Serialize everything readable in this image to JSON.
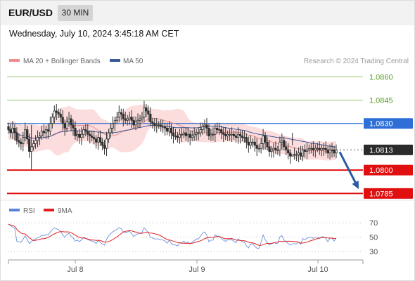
{
  "header": {
    "pair": "EUR/USD",
    "timeframe": "30 MIN"
  },
  "date_text": "Wednesday, July 10, 2024 3:45:18 AM CET",
  "legend": {
    "ma20": "MA 20 + Bollinger Bands",
    "ma50": "MA 50"
  },
  "watermark": "Research © 2024 Trading Central",
  "rsi_legend": {
    "rsi": "RSI",
    "ma9": "9MA"
  },
  "colors": {
    "up": "#2e2e2e",
    "down": "#2e2e2e",
    "resistance": "#96c86e",
    "resistance_text": "#5a9c2a",
    "pivot": "#2d6fd6",
    "support": "#e01010",
    "current": "#2b2b2b",
    "bands": "#fbd7d7",
    "ma20": "#f08c8c",
    "ma50": "#3a5a9a",
    "arrow": "#2a5aa0",
    "rsi": "#5b84d6",
    "rsi_ma": "#e02020"
  },
  "chart_data": [
    {
      "type": "candlestick",
      "instrument": "EUR/USD",
      "interval": "30 MIN",
      "ylim": [
        1.0782,
        1.0866
      ],
      "x_ticks": [
        "Jul 8",
        "Jul 9",
        "Jul 10"
      ],
      "levels": [
        {
          "value": 1.086,
          "label": "1.0860",
          "kind": "resistance"
        },
        {
          "value": 1.0845,
          "label": "1.0845",
          "kind": "resistance"
        },
        {
          "value": 1.083,
          "label": "1.0830",
          "kind": "pivot"
        },
        {
          "value": 1.0813,
          "label": "1.0813",
          "kind": "current"
        },
        {
          "value": 1.08,
          "label": "1.0800",
          "kind": "support"
        },
        {
          "value": 1.0785,
          "label": "1.0785",
          "kind": "support"
        }
      ],
      "closes": [
        1.0826,
        1.0824,
        1.0827,
        1.0824,
        1.0819,
        1.0818,
        1.0817,
        1.0821,
        1.0826,
        1.082,
        1.0812,
        1.0815,
        1.0817,
        1.0819,
        1.0821,
        1.0822,
        1.0825,
        1.0824,
        1.0826,
        1.0825,
        1.083,
        1.0834,
        1.0838,
        1.0837,
        1.0836,
        1.0834,
        1.083,
        1.0827,
        1.0831,
        1.0833,
        1.0829,
        1.0827,
        1.0822,
        1.0823,
        1.0821,
        1.0823,
        1.0826,
        1.0825,
        1.0823,
        1.0822,
        1.0821,
        1.082,
        1.0818,
        1.0821,
        1.0818,
        1.0816,
        1.0814,
        1.082,
        1.0824,
        1.0827,
        1.083,
        1.0832,
        1.0834,
        1.0837,
        1.0836,
        1.0833,
        1.0832,
        1.0833,
        1.0834,
        1.0832,
        1.0829,
        1.0831,
        1.0832,
        1.0833,
        1.0834,
        1.084,
        1.0838,
        1.0836,
        1.0831,
        1.083,
        1.0829,
        1.0829,
        1.0829,
        1.0828,
        1.0828,
        1.0827,
        1.0825,
        1.0827,
        1.0824,
        1.0822,
        1.0822,
        1.0821,
        1.0823,
        1.0823,
        1.0824,
        1.0822,
        1.0823,
        1.0821,
        1.0822,
        1.0823,
        1.0824,
        1.0824,
        1.0826,
        1.0828,
        1.0829,
        1.0827,
        1.0822,
        1.0823,
        1.0823,
        1.0827,
        1.0826,
        1.0826,
        1.0824,
        1.0823,
        1.0822,
        1.0823,
        1.0823,
        1.0823,
        1.0822,
        1.0821,
        1.0823,
        1.0822,
        1.0821,
        1.0821,
        1.0818,
        1.0816,
        1.0818,
        1.0818,
        1.0816,
        1.0814,
        1.0814,
        1.0817,
        1.0822,
        1.0818,
        1.0815,
        1.0812,
        1.0813,
        1.0814,
        1.0813,
        1.0813,
        1.0818,
        1.0819,
        1.0815,
        1.0813,
        1.0811,
        1.0809,
        1.081,
        1.081,
        1.081,
        1.0811,
        1.0809,
        1.0813,
        1.0812,
        1.0813,
        1.0814,
        1.0814,
        1.0813,
        1.0814,
        1.0814,
        1.0813,
        1.0814,
        1.0814,
        1.0813,
        1.0811,
        1.0813,
        1.0813,
        1.0811,
        1.0813
      ],
      "spikes": [
        {
          "index": 11,
          "high": 1.0829,
          "low": 1.08
        },
        {
          "index": 136,
          "high": 1.0824,
          "low": 1.0816
        }
      ],
      "projection": {
        "from": 1.0813,
        "to": 1.0786
      }
    },
    {
      "type": "line",
      "name": "RSI",
      "ylim": [
        20,
        80
      ],
      "y_ticks": [
        30,
        50,
        70
      ],
      "series_names": [
        "RSI",
        "9MA"
      ]
    }
  ]
}
